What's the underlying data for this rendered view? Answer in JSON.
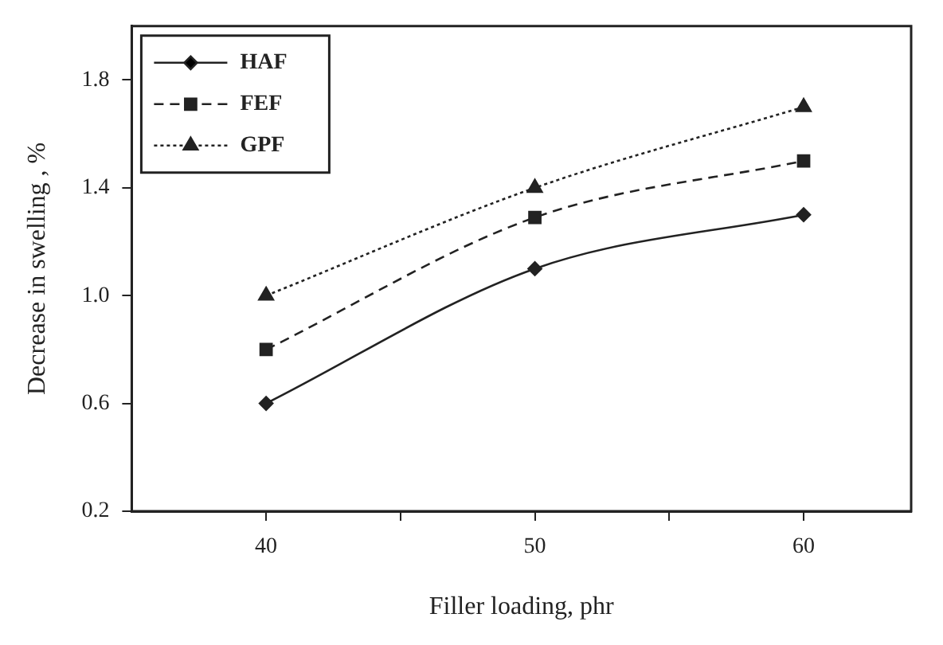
{
  "chart_data": {
    "type": "line",
    "xlabel": "Filler loading, phr",
    "ylabel": "Decrease in swelling , %",
    "x": [
      40,
      50,
      60
    ],
    "series": [
      {
        "name": "HAF",
        "color": "#222222",
        "values": [
          0.6,
          1.1,
          1.3
        ],
        "marker": "diamond",
        "line_style": "solid"
      },
      {
        "name": "FEF",
        "color": "#222222",
        "values": [
          0.8,
          1.29,
          1.5
        ],
        "marker": "square",
        "line_style": "dashed"
      },
      {
        "name": "GPF",
        "color": "#222222",
        "values": [
          1.0,
          1.4,
          1.7
        ],
        "marker": "triangle",
        "line_style": "dotted"
      }
    ],
    "xlim": [
      35,
      64
    ],
    "xticks": [
      40,
      {
        "value": 45,
        "label": null
      },
      50,
      {
        "value": 55,
        "label": null
      },
      60
    ],
    "ylim": [
      0.2,
      2.0
    ],
    "yticks": [
      0.2,
      0.6,
      {
        "value": 1.0,
        "label": "1.0"
      },
      1.4,
      1.8
    ],
    "grid": false,
    "legend": "top left"
  }
}
